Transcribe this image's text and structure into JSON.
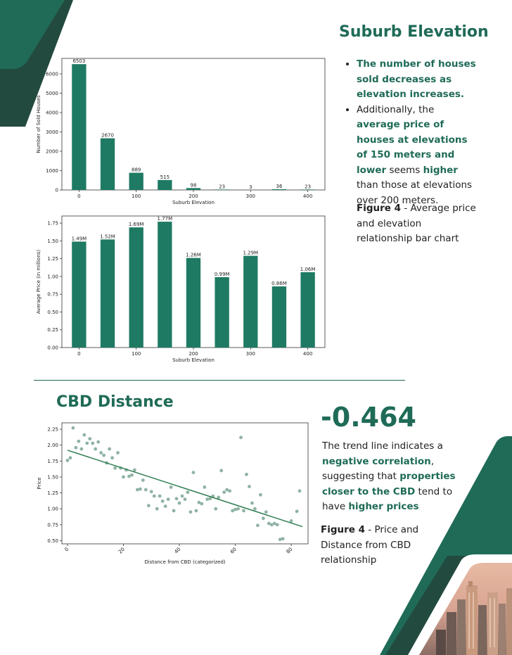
{
  "colors": {
    "brand_green": "#1f6b57",
    "dark_green": "#234a3f",
    "bar_fill": "#1f7a63",
    "scatter_point": "#8fb3a4",
    "trend_line": "#2e7d4f"
  },
  "section1": {
    "title": "Suburb Elevation",
    "bullet1_bold": "The number of houses sold decreases as elevation increases.",
    "bullet2_pre": "Additionally, the ",
    "bullet2_bold1": "average price of houses at elevations of 150 meters and lower",
    "bullet2_mid": " seems ",
    "bullet2_bold2": "higher",
    "bullet2_post": " than those at elevations over 200 meters.",
    "caption_bold": "Figure 4",
    "caption_text": " - Average price and elevation relationship bar chart"
  },
  "section2": {
    "title": "CBD Distance",
    "stat": "-0.464",
    "p_pre": "The trend line indicates a ",
    "p_bold1": "negative correlation",
    "p_mid": ", suggesting that ",
    "p_bold2": "properties closer to the CBD",
    "p_mid2": " tend to have ",
    "p_bold3": "higher prices",
    "caption_bold": "Figure 4",
    "caption_text": " - Price and Distance from CBD relationship"
  },
  "chart_data": [
    {
      "type": "bar",
      "title": "",
      "xlabel": "Suburb Elevation",
      "ylabel": "Number of Sold Houses",
      "x": [
        0,
        50,
        100,
        150,
        200,
        250,
        300,
        350,
        400
      ],
      "values": [
        6503,
        2670,
        889,
        515,
        98,
        23,
        3,
        36,
        23
      ],
      "data_labels": [
        "6503",
        "2670",
        "889",
        "515",
        "98",
        "23",
        "3",
        "36",
        "23"
      ],
      "x_ticks": [
        "0",
        "100",
        "200",
        "300",
        "400"
      ],
      "y_ticks": [
        "0",
        "1000",
        "2000",
        "3000",
        "4000",
        "5000",
        "6000"
      ],
      "ylim": [
        0,
        6800
      ],
      "grid": false
    },
    {
      "type": "bar",
      "title": "",
      "xlabel": "Suburb Elevation",
      "ylabel": "Average Price (in millions)",
      "x": [
        0,
        50,
        100,
        150,
        200,
        250,
        300,
        350,
        400
      ],
      "values": [
        1.49,
        1.52,
        1.69,
        1.77,
        1.26,
        0.99,
        1.29,
        0.86,
        1.06
      ],
      "data_labels": [
        "1.49M",
        "1.52M",
        "1.69M",
        "1.77M",
        "1.26M",
        "0.99M",
        "1.29M",
        "0.86M",
        "1.06M"
      ],
      "x_ticks": [
        "0",
        "100",
        "200",
        "300",
        "400"
      ],
      "y_ticks": [
        "0.00",
        "0.25",
        "0.50",
        "0.75",
        "1.00",
        "1.25",
        "1.50",
        "1.75"
      ],
      "ylim": [
        0,
        1.85
      ],
      "grid": false
    },
    {
      "type": "scatter",
      "title": "",
      "xlabel": "Distance from CBD (categorized)",
      "ylabel": "Price",
      "x_ticks": [
        "0",
        "20",
        "40",
        "60",
        "80"
      ],
      "y_ticks": [
        "0.50",
        "0.75",
        "1.00",
        "1.25",
        "1.50",
        "1.75",
        "2.00",
        "2.25"
      ],
      "xlim": [
        -2,
        86
      ],
      "ylim": [
        0.45,
        2.35
      ],
      "trend_line": [
        [
          0,
          1.92
        ],
        [
          84,
          0.72
        ]
      ],
      "points": [
        [
          0,
          1.76
        ],
        [
          1,
          1.8
        ],
        [
          2,
          2.27
        ],
        [
          3,
          1.96
        ],
        [
          4,
          2.06
        ],
        [
          5,
          1.94
        ],
        [
          6,
          2.16
        ],
        [
          7,
          2.03
        ],
        [
          8,
          2.1
        ],
        [
          9,
          2.03
        ],
        [
          10,
          1.94
        ],
        [
          11,
          2.05
        ],
        [
          12,
          1.88
        ],
        [
          13,
          1.84
        ],
        [
          14,
          1.72
        ],
        [
          15,
          1.94
        ],
        [
          16,
          1.8
        ],
        [
          17,
          1.64
        ],
        [
          18,
          1.88
        ],
        [
          19,
          1.64
        ],
        [
          20,
          1.5
        ],
        [
          21,
          1.61
        ],
        [
          22,
          1.51
        ],
        [
          23,
          1.53
        ],
        [
          24,
          1.61
        ],
        [
          25,
          1.3
        ],
        [
          26,
          1.31
        ],
        [
          27,
          1.45
        ],
        [
          28,
          1.3
        ],
        [
          29,
          1.05
        ],
        [
          30,
          1.27
        ],
        [
          31,
          1.2
        ],
        [
          32,
          1.0
        ],
        [
          33,
          1.2
        ],
        [
          34,
          1.12
        ],
        [
          35,
          1.04
        ],
        [
          36,
          1.15
        ],
        [
          37,
          1.34
        ],
        [
          38,
          0.97
        ],
        [
          39,
          1.16
        ],
        [
          40,
          1.09
        ],
        [
          41,
          1.2
        ],
        [
          42,
          1.15
        ],
        [
          43,
          1.26
        ],
        [
          44,
          0.95
        ],
        [
          45,
          1.57
        ],
        [
          46,
          0.97
        ],
        [
          47,
          1.1
        ],
        [
          48,
          1.08
        ],
        [
          49,
          1.34
        ],
        [
          50,
          1.15
        ],
        [
          51,
          1.16
        ],
        [
          52,
          1.2
        ],
        [
          53,
          1.0
        ],
        [
          54,
          1.18
        ],
        [
          55,
          1.6
        ],
        [
          56,
          1.26
        ],
        [
          57,
          1.3
        ],
        [
          58,
          1.28
        ],
        [
          59,
          0.97
        ],
        [
          60,
          0.99
        ],
        [
          61,
          1.0
        ],
        [
          62,
          2.12
        ],
        [
          63,
          0.97
        ],
        [
          64,
          1.54
        ],
        [
          65,
          1.35
        ],
        [
          66,
          1.09
        ],
        [
          67,
          1.0
        ],
        [
          68,
          0.74
        ],
        [
          69,
          1.22
        ],
        [
          70,
          0.85
        ],
        [
          71,
          0.95
        ],
        [
          72,
          0.77
        ],
        [
          73,
          0.75
        ],
        [
          74,
          0.77
        ],
        [
          75,
          0.75
        ],
        [
          76,
          0.52
        ],
        [
          77,
          0.53
        ],
        [
          80,
          0.81
        ],
        [
          82,
          0.96
        ],
        [
          83,
          1.28
        ]
      ]
    }
  ]
}
